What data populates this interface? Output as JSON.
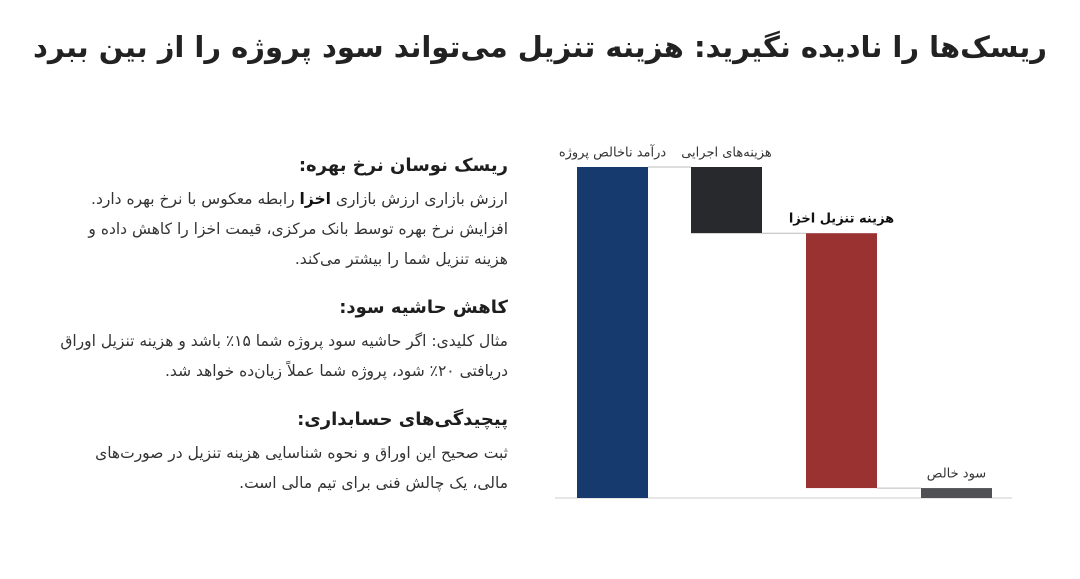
{
  "title": "ریسک‌ها را نادیده نگیرید: هزینه تنزیل می‌تواند سود پروژه را از بین ببرد",
  "sections": [
    {
      "heading": "ریسک نوسان نرخ بهره:",
      "body": [
        "ارزش بازاری ارزش بازاری ",
        "اخزا",
        " رابطه معکوس با نرخ بهره دارد. افزایش نرخ بهره توسط بانک مرکزی، قیمت اخزا را کاهش داده و هزینه تنزیل شما را بیشتر می‌کند."
      ]
    },
    {
      "heading": "کاهش حاشیه سود:",
      "body": [
        "مثال کلیدی: اگر حاشیه سود پروژه شما ۱۵٪ باشد و هزینه تنزیل اوراق دریافتی ۲۰٪ شود، پروژه شما عملاً زیان‌ده خواهد شد."
      ]
    },
    {
      "heading": "پیچیدگی‌های حسابداری:",
      "body": [
        "ثبت صحیح این اوراق و نحوه شناسایی هزینه تنزیل در صورت‌های مالی، یک چالش فنی برای تیم مالی است."
      ]
    }
  ],
  "chart_data": {
    "type": "waterfall",
    "categories": [
      "درآمد ناخالص پروژه",
      "هزینه‌های اجرایی",
      "هزینه تنزیل اخزا",
      "سود خالص"
    ],
    "values": [
      100,
      -20,
      -77,
      3
    ],
    "measure": [
      "total",
      "delta",
      "delta",
      "total"
    ],
    "colors": [
      "#173a6e",
      "#27292d",
      "#9b3232",
      "#505155"
    ],
    "ylim": [
      0,
      100
    ]
  }
}
